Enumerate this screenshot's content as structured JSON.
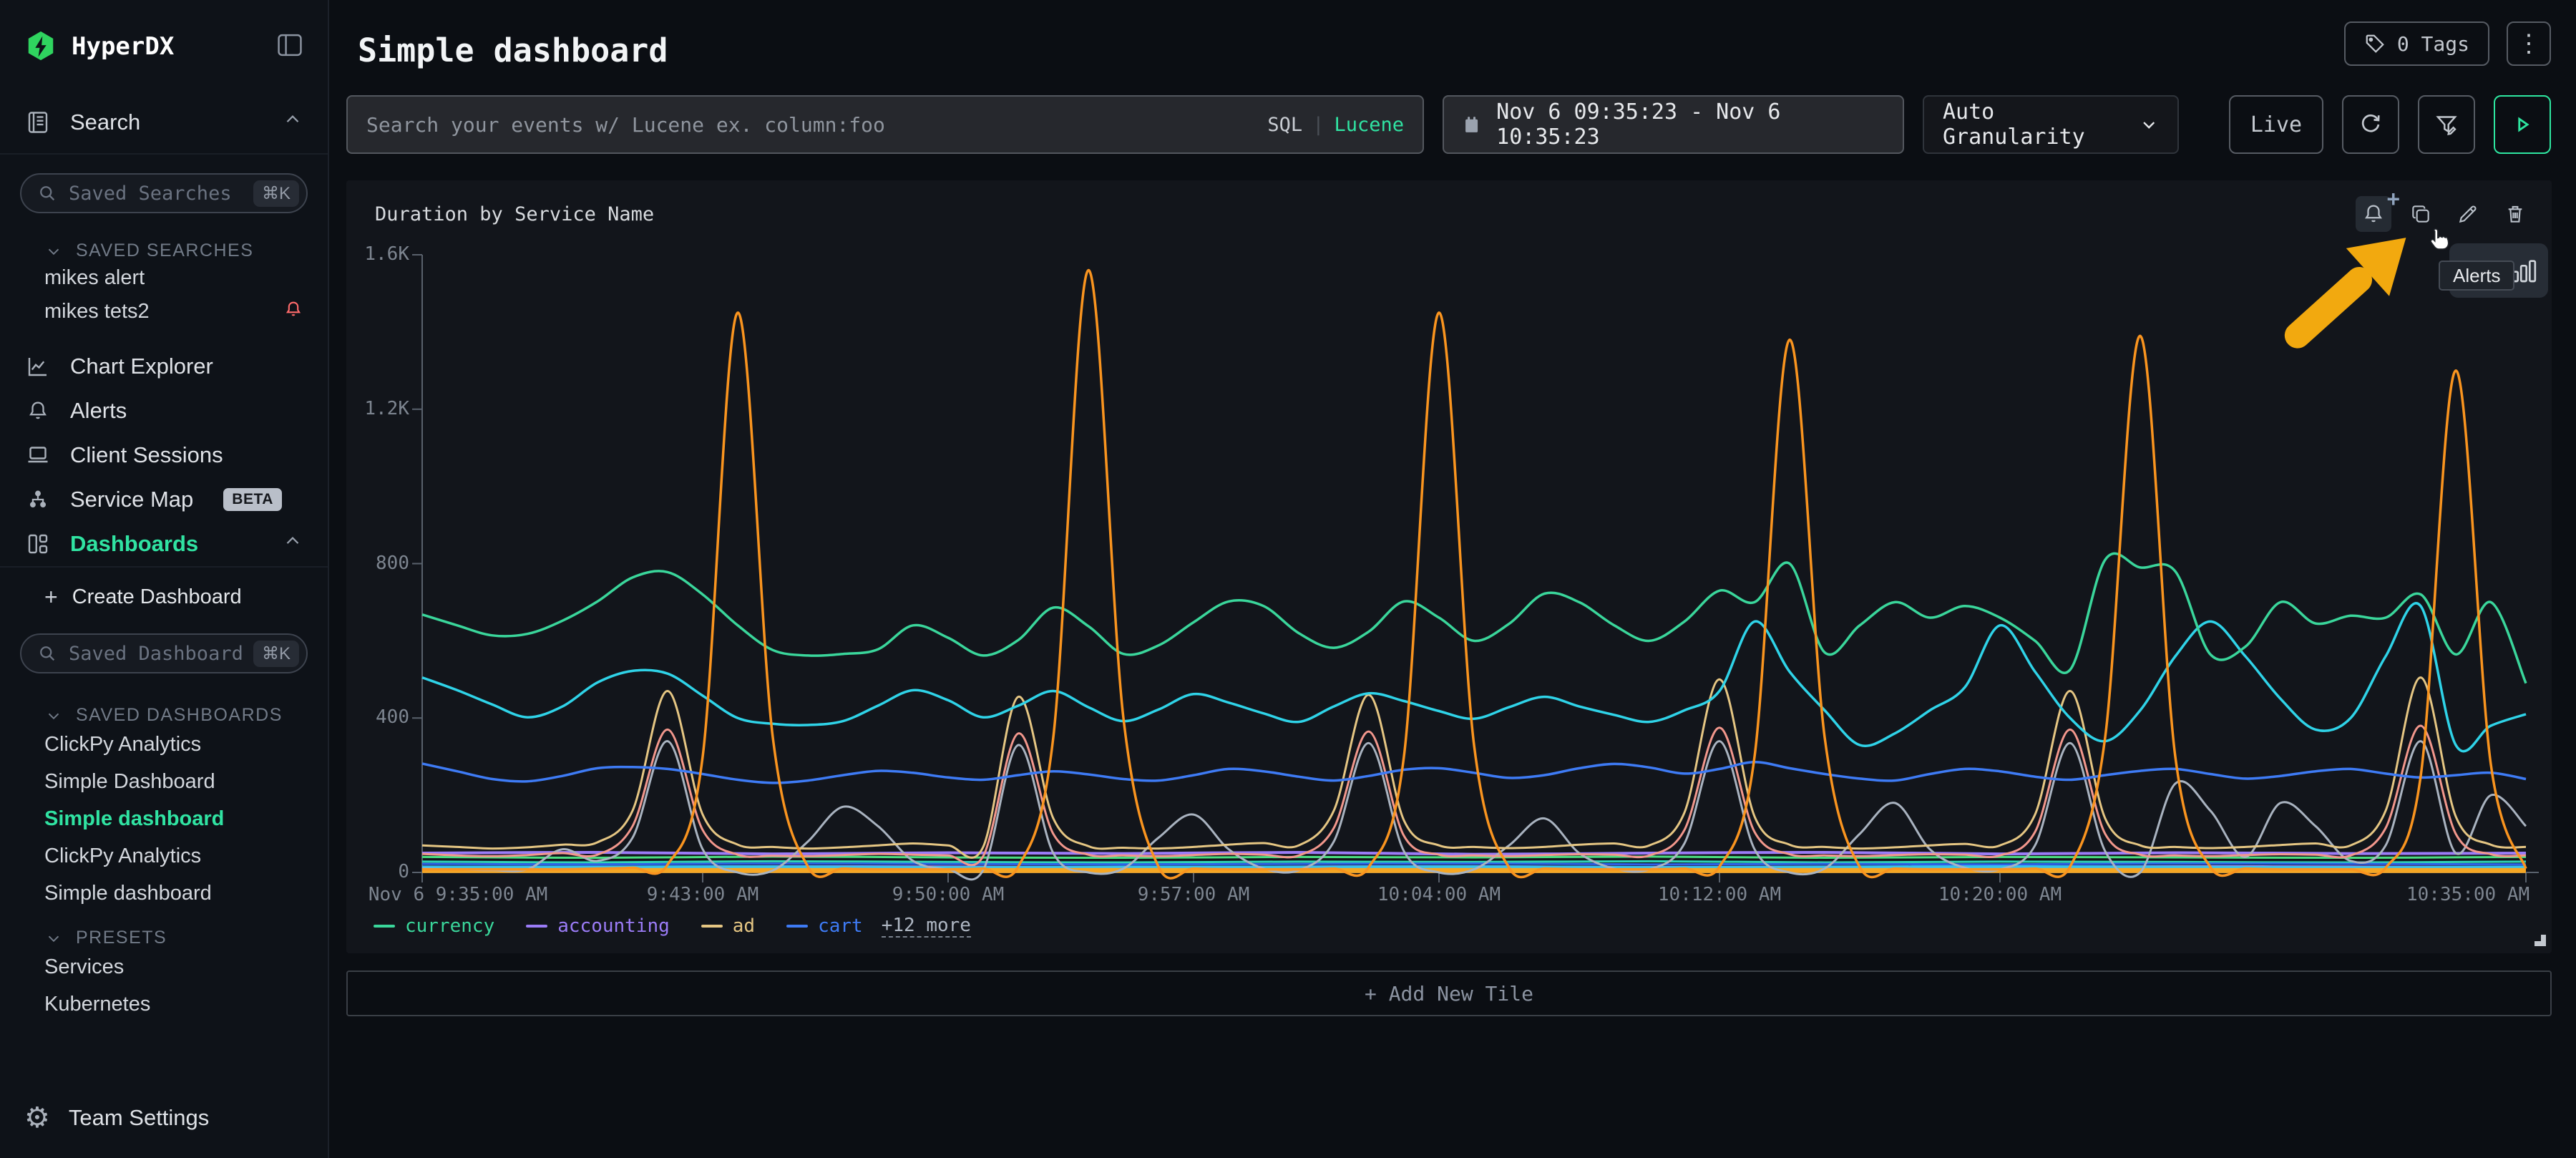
{
  "app": {
    "name": "HyperDX"
  },
  "sidebar": {
    "search_label": "Search",
    "saved_searches_placeholder": "Saved Searches",
    "shortcut": "⌘K",
    "saved_searches_header": "SAVED SEARCHES",
    "saved_searches": [
      {
        "label": "mikes alert",
        "has_alert": false
      },
      {
        "label": "mikes tets2",
        "has_alert": true
      }
    ],
    "nav_chart_explorer": "Chart Explorer",
    "nav_alerts": "Alerts",
    "nav_client_sessions": "Client Sessions",
    "nav_service_map": "Service Map",
    "beta_badge": "BETA",
    "nav_dashboards": "Dashboards",
    "create_dashboard": "Create Dashboard",
    "saved_dashboards_placeholder": "Saved Dashboards",
    "saved_dashboards_header": "SAVED DASHBOARDS",
    "saved_dashboards": [
      "ClickPy Analytics",
      "Simple Dashboard",
      "Simple dashboard",
      "ClickPy Analytics",
      "Simple dashboard"
    ],
    "active_dashboard_index": 2,
    "presets_header": "PRESETS",
    "presets": [
      "Services",
      "Kubernetes"
    ],
    "team_settings": "Team Settings"
  },
  "header": {
    "title": "Simple dashboard",
    "tags_label": "0 Tags"
  },
  "toolbar": {
    "search_placeholder": "Search your events w/ Lucene ex. column:foo",
    "sql_label": "SQL",
    "separator": "|",
    "lucene_label": "Lucene",
    "time_range": "Nov 6 09:35:23 - Nov 6 10:35:23",
    "granularity": "Auto Granularity",
    "live_label": "Live"
  },
  "tile": {
    "title": "Duration by Service Name",
    "tooltip_label": "Alerts",
    "legend_more": "+12 more",
    "add_new_tile": "+ Add New Tile"
  },
  "colors": {
    "accent": "#30e3a2",
    "logo_green": "#2fd45f",
    "alert_red": "#ff6b6b",
    "arrow_yellow": "#f2a90f"
  },
  "chart_data": {
    "type": "line",
    "title": "Duration by Service Name",
    "xlabel": "",
    "ylabel": "",
    "ylim": [
      0,
      1600
    ],
    "grid": false,
    "legend_position": "bottom-left",
    "y_tick_values": [
      0,
      400,
      800,
      1200,
      1600
    ],
    "y_tick_labels": [
      "0",
      "400",
      "800",
      "1.2K",
      "1.6K"
    ],
    "x_total_minutes": 60,
    "x_tick_minutes": [
      0,
      8,
      15,
      22,
      29,
      37,
      45,
      60
    ],
    "x_tick_labels": [
      "Nov 6 9:35:00 AM",
      "9:43:00 AM",
      "9:50:00 AM",
      "9:57:00 AM",
      "10:04:00 AM",
      "10:12:00 AM",
      "10:20:00 AM",
      "10:35:00 AM"
    ],
    "legend": [
      {
        "label": "currency",
        "color": "#3ad69b"
      },
      {
        "label": "accounting",
        "color": "#9b7cf7"
      },
      {
        "label": "ad",
        "color": "#e5c683"
      },
      {
        "label": "cart",
        "color": "#3e7bf5"
      }
    ],
    "series": [
      {
        "label": "",
        "color": "#718096",
        "width": 3,
        "values": [
          3,
          3,
          4,
          3,
          3,
          4,
          3,
          3,
          4,
          3,
          3,
          4,
          3
        ]
      },
      {
        "label": "",
        "color": "#6672f1",
        "width": 3,
        "values": [
          9,
          10,
          8,
          9,
          10,
          9,
          8,
          10,
          9,
          8,
          9,
          10,
          9
        ]
      },
      {
        "label": "",
        "color": "#c084fc",
        "width": 3,
        "values": [
          15,
          14,
          16,
          15,
          14,
          15,
          16,
          14,
          15,
          14,
          16,
          15,
          14
        ]
      },
      {
        "label": "",
        "color": "#4ade80",
        "width": 3,
        "values": [
          40,
          38,
          41,
          39,
          38,
          40,
          39,
          41,
          38,
          40,
          39,
          38,
          40
        ]
      },
      {
        "label": "",
        "color": "#2fd4b5",
        "width": 3,
        "values": [
          28,
          26,
          29,
          27,
          26,
          28,
          27,
          29,
          26,
          28,
          27,
          26,
          28
        ]
      },
      {
        "label": "",
        "color": "#2e5fe8",
        "width": 3,
        "values": [
          22,
          21,
          23,
          22,
          21,
          22,
          23,
          21,
          22,
          21,
          23,
          22,
          21
        ]
      },
      {
        "label": "",
        "color": "#35c3ef",
        "width": 6,
        "values": [
          12,
          12,
          13,
          11,
          12,
          12,
          13,
          11,
          12,
          13,
          12,
          11,
          12
        ]
      },
      {
        "label": "",
        "color": "#f5a623",
        "width": 7,
        "values": [
          5,
          5,
          5,
          5,
          5,
          5,
          5,
          5,
          5,
          5,
          5,
          5,
          5
        ]
      },
      {
        "label": "accounting",
        "color": "#9b7cf7",
        "width": 4,
        "values": [
          50,
          52,
          48,
          51,
          49,
          52,
          47,
          50,
          52,
          48,
          51,
          49,
          50
        ]
      },
      {
        "label": "",
        "color": "#a9b3c0",
        "width": 3,
        "values": [
          10,
          8,
          6,
          8,
          60,
          30,
          90,
          340,
          60,
          0,
          5,
          80,
          170,
          120,
          30,
          8,
          6,
          330,
          50,
          0,
          10,
          90,
          150,
          60,
          10,
          6,
          80,
          335,
          55,
          0,
          8,
          70,
          140,
          50,
          10,
          8,
          75,
          340,
          60,
          0,
          10,
          100,
          180,
          60,
          12,
          8,
          70,
          335,
          55,
          0,
          230,
          160,
          40,
          180,
          120,
          30,
          70,
          340,
          50,
          200,
          120
        ]
      },
      {
        "label": "",
        "color": "#f2978c",
        "width": 3,
        "values": [
          48,
          44,
          42,
          45,
          50,
          46,
          120,
          370,
          110,
          46,
          43,
          42,
          45,
          48,
          46,
          44,
          42,
          360,
          100,
          46,
          44,
          42,
          45,
          48,
          46,
          44,
          115,
          365,
          95,
          46,
          44,
          42,
          45,
          47,
          46,
          44,
          110,
          375,
          105,
          47,
          44,
          42,
          45,
          47,
          46,
          44,
          105,
          370,
          100,
          46,
          44,
          42,
          45,
          47,
          46,
          44,
          115,
          380,
          100,
          47,
          44
        ]
      },
      {
        "label": "ad",
        "color": "#e5c683",
        "width": 3,
        "values": [
          70,
          66,
          62,
          65,
          72,
          78,
          160,
          470,
          150,
          72,
          66,
          62,
          65,
          70,
          75,
          70,
          66,
          455,
          140,
          68,
          64,
          62,
          66,
          72,
          76,
          70,
          160,
          460,
          135,
          70,
          66,
          63,
          66,
          72,
          75,
          70,
          155,
          500,
          145,
          72,
          66,
          62,
          65,
          70,
          74,
          70,
          150,
          470,
          140,
          70,
          66,
          63,
          66,
          71,
          75,
          70,
          160,
          505,
          145,
          72,
          66
        ]
      },
      {
        "label": "cart",
        "color": "#3e7bf5",
        "width": 3.5,
        "values": [
          282,
          262,
          242,
          236,
          250,
          270,
          273,
          268,
          255,
          240,
          232,
          238,
          252,
          263,
          258,
          246,
          240,
          252,
          262,
          254,
          242,
          238,
          252,
          268,
          262,
          248,
          238,
          250,
          266,
          270,
          258,
          245,
          252,
          270,
          281,
          272,
          256,
          268,
          286,
          270,
          255,
          243,
          238,
          255,
          268,
          262,
          248,
          240,
          252,
          263,
          268,
          255,
          243,
          250,
          262,
          268,
          256,
          246,
          252,
          258,
          242
        ]
      },
      {
        "label": "",
        "color": "#2fd3e8",
        "width": 3.5,
        "values": [
          505,
          472,
          435,
          402,
          430,
          492,
          522,
          515,
          458,
          400,
          385,
          382,
          392,
          432,
          472,
          446,
          402,
          432,
          470,
          428,
          392,
          422,
          462,
          440,
          412,
          390,
          430,
          464,
          444,
          418,
          398,
          428,
          455,
          430,
          408,
          390,
          420,
          470,
          650,
          520,
          420,
          330,
          360,
          420,
          480,
          640,
          520,
          400,
          340,
          420,
          560,
          650,
          560,
          450,
          370,
          400,
          560,
          690,
          330,
          380,
          410
        ]
      },
      {
        "label": "currency",
        "color": "#3ad69b",
        "width": 3.5,
        "values": [
          668,
          640,
          614,
          618,
          652,
          702,
          764,
          778,
          720,
          640,
          576,
          562,
          566,
          578,
          640,
          608,
          562,
          602,
          686,
          638,
          566,
          588,
          648,
          702,
          690,
          620,
          582,
          624,
          702,
          660,
          600,
          644,
          722,
          700,
          640,
          600,
          650,
          730,
          700,
          800,
          570,
          640,
          700,
          660,
          690,
          660,
          600,
          525,
          810,
          790,
          780,
          565,
          585,
          700,
          645,
          665,
          660,
          720,
          565,
          700,
          490
        ]
      },
      {
        "label": "",
        "color": "#f9941f",
        "width": 3.5,
        "values": [
          8,
          8,
          8,
          8,
          8,
          10,
          12,
          20,
          300,
          1450,
          350,
          15,
          10,
          8,
          8,
          8,
          10,
          15,
          350,
          1560,
          400,
          15,
          10,
          8,
          8,
          8,
          10,
          14,
          300,
          1450,
          330,
          12,
          10,
          8,
          8,
          8,
          10,
          15,
          300,
          1380,
          350,
          14,
          10,
          8,
          8,
          8,
          10,
          15,
          350,
          1390,
          300,
          14,
          10,
          8,
          8,
          8,
          12,
          250,
          1300,
          280,
          10
        ]
      }
    ]
  }
}
